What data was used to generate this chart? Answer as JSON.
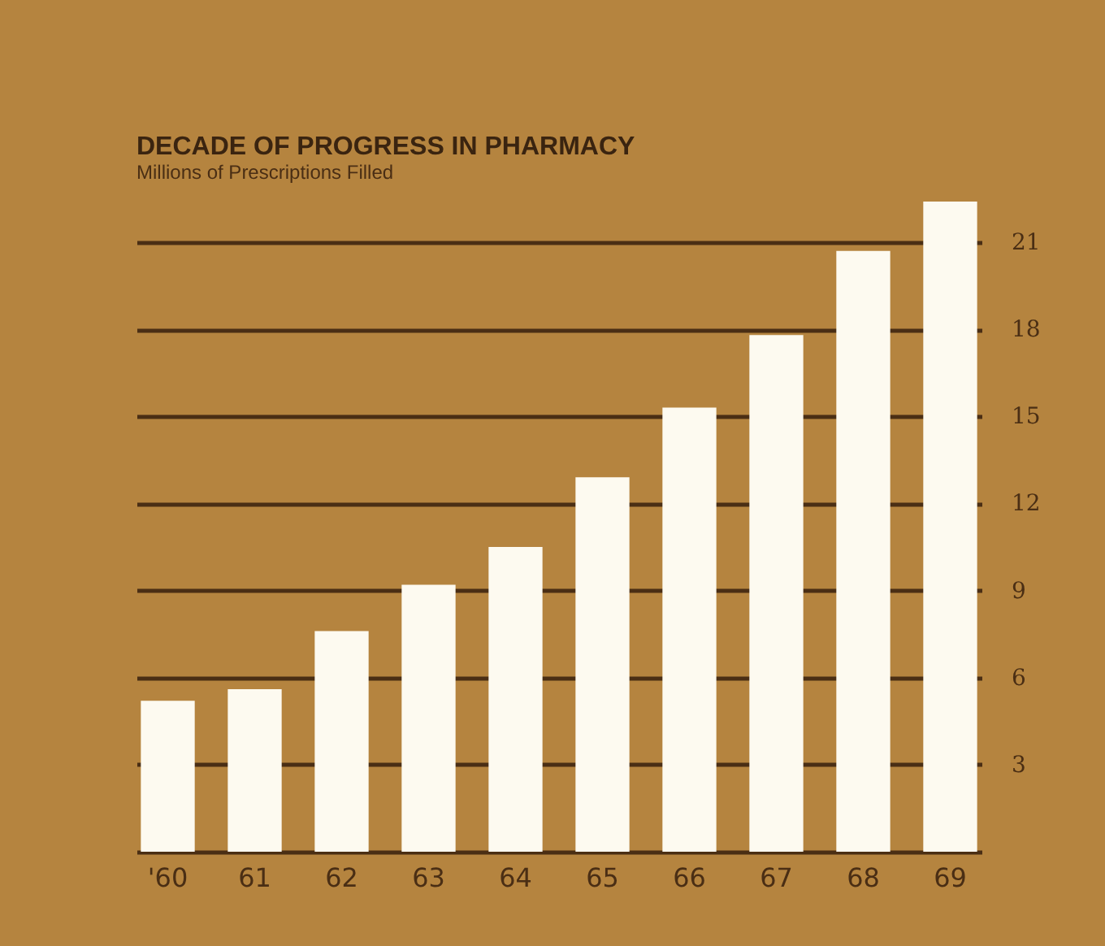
{
  "chart_data": {
    "type": "bar",
    "title": "DECADE OF PROGRESS IN PHARMACY",
    "subtitle": "Millions of Prescriptions Filled",
    "categories": [
      "'60",
      "61",
      "62",
      "63",
      "64",
      "65",
      "66",
      "67",
      "68",
      "69"
    ],
    "values": [
      5.2,
      5.6,
      7.6,
      9.2,
      10.5,
      12.9,
      15.3,
      17.8,
      20.7,
      22.4
    ],
    "color": "#fdfaf0",
    "ylim": [
      0,
      22.4
    ],
    "yticks": [
      3,
      6,
      9,
      12,
      15,
      18,
      21
    ],
    "grid": "y"
  }
}
